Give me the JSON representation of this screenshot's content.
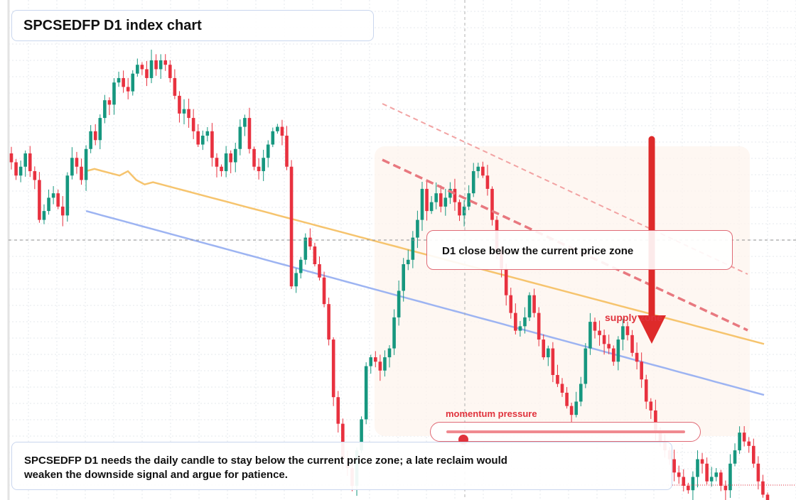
{
  "title": "SPCSEDFP D1 index chart",
  "note": "D1 close below the current price zone",
  "zone_label": "supply zone",
  "momentum": {
    "label": "momentum pressure",
    "level": 0.07
  },
  "description": "SPCSEDFP D1 needs the daily candle to stay below the current price zone; a late reclaim would weaken the downside signal and argue for patience.",
  "colors": {
    "up": "#16977f",
    "down": "#e8313f",
    "ma_fast": "#f6c46e",
    "ma_slow": "#9db4f2",
    "zone_accent": "#e0323c",
    "arrow": "#de2a2a"
  },
  "icons": {
    "signal": "down-arrow-icon"
  },
  "chart_data": {
    "type": "candlestick",
    "title": "SPCSEDFP D1 index chart",
    "xlabel": "",
    "ylabel": "",
    "grid": true,
    "ylim": [
      0,
      100
    ],
    "current_price": 52,
    "series": [
      {
        "name": "",
        "values": [
          73,
          70,
          72,
          75,
          71,
          69,
          60,
          62,
          65,
          66,
          63,
          61,
          70,
          74,
          72,
          69,
          76,
          80,
          78,
          83,
          87,
          86,
          91,
          92,
          90,
          89,
          93,
          95,
          94,
          92,
          96,
          94,
          96,
          95,
          92,
          88,
          84,
          85,
          83,
          80,
          77,
          79,
          80,
          74,
          72,
          71,
          75,
          73,
          76,
          81,
          83,
          76,
          72,
          71,
          74,
          77,
          80,
          81,
          79,
          72,
          45,
          48,
          51,
          56,
          54,
          50,
          47,
          41,
          33,
          20,
          14,
          6,
          4,
          0,
          8,
          15,
          27,
          29,
          28,
          26,
          29,
          31,
          38,
          44,
          50,
          51,
          56,
          60,
          67,
          62,
          64,
          66,
          63,
          65,
          67,
          64,
          61,
          63,
          66,
          71,
          72,
          70,
          67,
          60,
          53,
          49,
          43,
          39,
          35,
          36,
          38,
          43,
          39,
          33,
          29,
          31,
          25,
          23,
          21,
          18,
          16,
          19,
          23,
          31,
          37,
          35,
          34,
          32,
          31,
          28,
          33,
          36,
          34,
          30,
          28,
          24,
          19,
          17,
          12,
          10,
          8,
          6,
          3,
          2,
          0,
          -1,
          2,
          6,
          5,
          1,
          2,
          3,
          0,
          -1,
          5,
          8,
          12,
          10,
          9,
          5,
          1,
          -2,
          -4
        ]
      },
      {
        "name": "",
        "values": [
          71,
          71.5,
          71,
          70.5,
          70,
          71,
          69,
          68,
          68.5,
          68,
          67.5,
          67,
          66.5,
          66,
          65.5,
          65,
          64.5,
          64,
          63.5,
          63,
          62.5,
          62,
          61.5,
          61,
          60.5,
          60,
          59.5,
          59,
          58.5,
          58,
          57.5,
          57,
          56.5,
          56,
          55.5,
          55,
          54.5,
          54,
          53.5,
          53,
          52.5,
          52,
          51.5,
          51,
          50.5,
          50,
          49.5,
          49,
          48.5,
          48,
          47.5,
          47,
          46.5,
          46,
          45.5,
          45,
          44.5,
          44,
          43.5,
          43,
          42.5,
          42,
          41.5,
          41,
          40.5,
          40,
          39.5,
          39,
          38.5,
          38,
          37.5,
          37,
          36.5,
          36,
          35.5,
          35,
          34.5,
          34,
          33.5,
          33,
          32.5,
          32
        ]
      },
      {
        "name": "",
        "values": [
          62,
          61.5,
          61,
          60.5,
          60,
          59.5,
          59,
          58.5,
          58,
          57.5,
          57,
          56.5,
          56,
          55.5,
          55,
          54.5,
          54,
          53.5,
          53,
          52.5,
          52,
          51.5,
          51,
          50.5,
          50,
          49.5,
          49,
          48.5,
          48,
          47.5,
          47,
          46.5,
          46,
          45.5,
          45,
          44.5,
          44,
          43.5,
          43,
          42.5,
          42,
          41.5,
          41,
          40.5,
          40,
          39.5,
          39,
          38.5,
          38,
          37.5,
          37,
          36.5,
          36,
          35.5,
          35,
          34.5,
          34,
          33.5,
          33,
          32.5,
          32,
          31.5,
          31,
          30.5,
          30,
          29.5,
          29,
          28.5,
          28,
          27.5,
          27,
          26.5,
          26,
          25.5,
          25,
          24.5,
          24,
          23.5,
          23,
          22.5,
          22,
          21.5,
          21,
          20.5
        ]
      }
    ],
    "annotations": [
      "D1 close below the current price zone",
      "supply zone",
      "momentum pressure"
    ]
  }
}
